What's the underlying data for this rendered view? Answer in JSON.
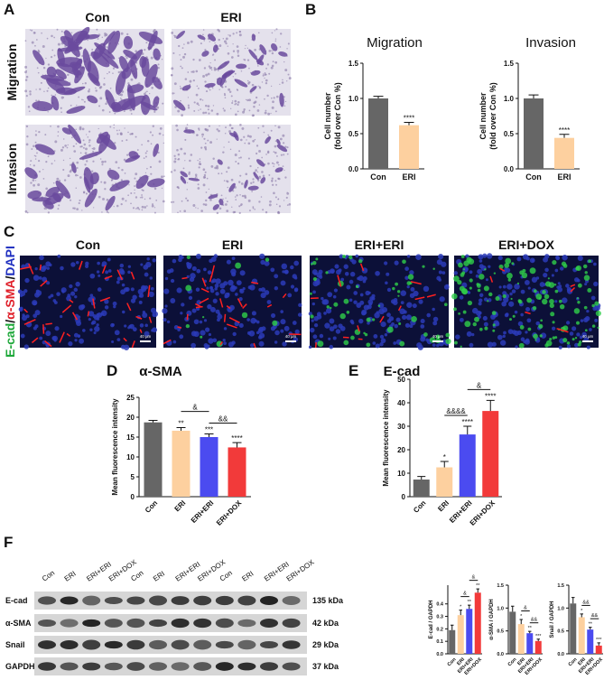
{
  "figure": {
    "panel_letters": [
      "A",
      "B",
      "C",
      "D",
      "E",
      "F"
    ],
    "a": {
      "columns": [
        "Con",
        "ERI"
      ],
      "rows": [
        "Migration",
        "Invasion"
      ]
    },
    "c": {
      "columns": [
        "Con",
        "ERI",
        "ERI+ERI",
        "ERI+DOX"
      ],
      "stain": [
        "E-cad",
        "/",
        "α-SMA",
        "/",
        "DAPI"
      ],
      "scale_bar": "40 μm"
    },
    "f": {
      "lanes": [
        "Con",
        "ERI",
        "ERI+ERI",
        "ERI+DOX",
        "Con",
        "ERI",
        "ERI+ERI",
        "ERI+DOX",
        "Con",
        "ERI",
        "ERI+ERI",
        "ERI+DOX"
      ],
      "bands": [
        {
          "name": "E-cad",
          "size": "135 kDa"
        },
        {
          "name": "α-SMA",
          "size": "42 kDa"
        },
        {
          "name": "Snail",
          "size": "29 kDa"
        },
        {
          "name": "GAPDH",
          "size": "37 kDa"
        }
      ]
    }
  },
  "chart_data": [
    {
      "type": "bar",
      "title": "Migration",
      "ylabel": [
        "Cell number",
        "(fold over Con %)"
      ],
      "categories": [
        "Con",
        "ERI"
      ],
      "values": [
        1.0,
        0.62
      ],
      "errors": [
        0.03,
        0.04
      ],
      "value_annotations": [
        null,
        "****"
      ],
      "colors": [
        "#666666",
        "#fdd09f"
      ],
      "ylim": [
        0,
        1.5
      ],
      "yticks": [
        {
          "value": 0,
          "label": "0.0"
        },
        {
          "value": 0.5,
          "label": "0.5"
        },
        {
          "value": 1,
          "label": "1.0"
        },
        {
          "value": 1.5,
          "label": "1.5"
        }
      ]
    },
    {
      "type": "bar",
      "title": "Invasion",
      "ylabel": [
        "Cell number",
        "(fold over Con %)"
      ],
      "categories": [
        "Con",
        "ERI"
      ],
      "values": [
        1.0,
        0.44
      ],
      "errors": [
        0.05,
        0.05
      ],
      "value_annotations": [
        null,
        "****"
      ],
      "colors": [
        "#666666",
        "#fdd09f"
      ],
      "ylim": [
        0,
        1.5
      ],
      "yticks": [
        {
          "value": 0,
          "label": "0.0"
        },
        {
          "value": 0.5,
          "label": "0.5"
        },
        {
          "value": 1,
          "label": "1.0"
        },
        {
          "value": 1.5,
          "label": "1.5"
        }
      ]
    },
    {
      "type": "bar",
      "title": "α-SMA",
      "ylabel": "Mean fluorescence intensity",
      "categories": [
        "Con",
        "ERI",
        "ERI+ERI",
        "ERI+DOX"
      ],
      "values": [
        18.7,
        16.6,
        15.0,
        12.4
      ],
      "errors": [
        0.5,
        0.8,
        0.8,
        1.2
      ],
      "value_annotations": [
        null,
        "**",
        "***",
        "****"
      ],
      "comparisons": [
        {
          "pair": [
            2,
            3
          ],
          "label": "&&"
        },
        {
          "pair": [
            1,
            2
          ],
          "label": "&"
        }
      ],
      "colors": [
        "#666666",
        "#fdd09f",
        "#4b4bf0",
        "#f23a3a"
      ],
      "ylim": [
        0,
        25
      ],
      "yticks": [
        0,
        5,
        10,
        15,
        20,
        25
      ]
    },
    {
      "type": "bar",
      "title": "E-cad",
      "ylabel": "Mean fluorescence intensity",
      "categories": [
        "Con",
        "ERI",
        "ERI+ERI",
        "ERI+DOX"
      ],
      "values": [
        7.3,
        12.5,
        26.5,
        36.5
      ],
      "errors": [
        1.3,
        2.5,
        3.5,
        4.5
      ],
      "value_annotations": [
        null,
        "*",
        "****",
        "****"
      ],
      "comparisons": [
        {
          "pair": [
            1,
            2
          ],
          "label": "&&&&"
        },
        {
          "pair": [
            2,
            3
          ],
          "label": "&"
        }
      ],
      "colors": [
        "#666666",
        "#fdd09f",
        "#4b4bf0",
        "#f23a3a"
      ],
      "ylim": [
        0,
        50
      ],
      "yticks": [
        0,
        10,
        20,
        30,
        40,
        50
      ]
    },
    {
      "type": "bar",
      "ylabel": "E-cad / GAPDH",
      "categories": [
        "Con",
        "ERI",
        "ERI+ERI",
        "ERI+DOX"
      ],
      "values": [
        0.19,
        0.31,
        0.36,
        0.49
      ],
      "errors": [
        0.04,
        0.04,
        0.03,
        0.03
      ],
      "value_annotations": [
        null,
        "*",
        "**",
        "**"
      ],
      "comparisons": [
        {
          "pair": [
            1,
            2
          ],
          "label": "&"
        },
        {
          "pair": [
            2,
            3
          ],
          "label": "&"
        }
      ],
      "colors": [
        "#666666",
        "#fdd09f",
        "#4b4bf0",
        "#f23a3a"
      ],
      "ylim": [
        0,
        0.55
      ],
      "yticks": [
        {
          "value": 0,
          "label": "0.0"
        },
        {
          "value": 0.1,
          "label": "0.1"
        },
        {
          "value": 0.2,
          "label": "0.2"
        },
        {
          "value": 0.3,
          "label": "0.3"
        },
        {
          "value": 0.4,
          "label": "0.4"
        }
      ]
    },
    {
      "type": "bar",
      "ylabel": "α-SMA / GAPDH",
      "categories": [
        "Con",
        "ERI",
        "ERI+ERI",
        "ERI+DOX"
      ],
      "values": [
        0.92,
        0.65,
        0.45,
        0.28
      ],
      "errors": [
        0.12,
        0.1,
        0.04,
        0.04
      ],
      "value_annotations": [
        null,
        "*",
        "**",
        "***"
      ],
      "comparisons": [
        {
          "pair": [
            2,
            3
          ],
          "label": "&&"
        },
        {
          "pair": [
            1,
            2
          ],
          "label": "&"
        }
      ],
      "colors": [
        "#666666",
        "#fdd09f",
        "#4b4bf0",
        "#f23a3a"
      ],
      "ylim": [
        0,
        1.5
      ],
      "yticks": [
        {
          "value": 0,
          "label": "0.0"
        },
        {
          "value": 0.5,
          "label": "0.5"
        },
        {
          "value": 1,
          "label": "1.0"
        },
        {
          "value": 1.5,
          "label": "1.5"
        }
      ]
    },
    {
      "type": "bar",
      "ylabel": "Snail / GAPDH",
      "categories": [
        "Con",
        "ERI",
        "ERI+ERI",
        "ERI+DOX"
      ],
      "values": [
        1.1,
        0.8,
        0.53,
        0.18
      ],
      "errors": [
        0.13,
        0.07,
        0.05,
        0.06
      ],
      "value_annotations": [
        null,
        "*",
        "**",
        "***"
      ],
      "comparisons": [
        {
          "pair": [
            2,
            3
          ],
          "label": "&&"
        },
        {
          "pair": [
            1,
            2
          ],
          "label": "&&"
        }
      ],
      "colors": [
        "#666666",
        "#fdd09f",
        "#4b4bf0",
        "#f23a3a"
      ],
      "ylim": [
        0,
        1.5
      ],
      "yticks": [
        {
          "value": 0,
          "label": "0.0"
        },
        {
          "value": 0.5,
          "label": "0.5"
        },
        {
          "value": 1,
          "label": "1.0"
        },
        {
          "value": 1.5,
          "label": "1.5"
        }
      ]
    }
  ]
}
